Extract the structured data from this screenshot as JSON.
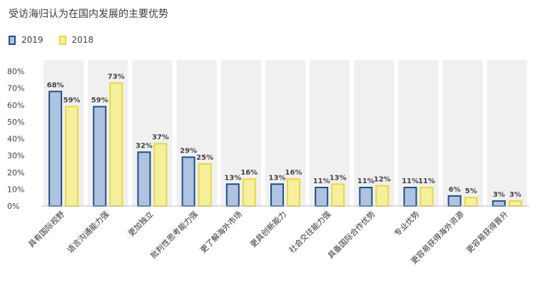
{
  "title": "受访海归认为在国内发展的主要优势",
  "legend": [
    {
      "name": "2019",
      "color": "#aec3e0",
      "border": "#1f4e8c"
    },
    {
      "name": "2018",
      "color": "#f6ef9c",
      "border": "#e8d93a"
    }
  ],
  "chart_data": {
    "type": "bar",
    "title": "受访海归认为在国内发展的主要优势",
    "xlabel": "",
    "ylabel": "",
    "ylim": [
      0,
      80
    ],
    "yticks": [
      "0%",
      "10%",
      "20%",
      "30%",
      "40%",
      "50%",
      "60%",
      "70%",
      "80%"
    ],
    "legend_position": "top-left",
    "categories": [
      "具有国际视野",
      "语言沟通能力强",
      "更加独立",
      "批判性思考能力强",
      "更了解海外市场",
      "更具创新能力",
      "社会交往能力强",
      "具备国际合作优势",
      "专业优势",
      "更容易获得海外资源",
      "更容易获得晋升"
    ],
    "series": [
      {
        "name": "2019",
        "values": [
          68,
          59,
          32,
          29,
          13,
          13,
          11,
          11,
          11,
          6,
          3
        ],
        "labels": [
          "68%",
          "59%",
          "32%",
          "29%",
          "13%",
          "13%",
          "11%",
          "11%",
          "11%",
          "6%",
          "3%"
        ],
        "color": "#aec3e0",
        "border": "#1f4e8c"
      },
      {
        "name": "2018",
        "values": [
          59,
          73,
          37,
          25,
          16,
          16,
          13,
          12,
          11,
          5,
          3
        ],
        "labels": [
          "59%",
          "73%",
          "37%",
          "25%",
          "16%",
          "16%",
          "13%",
          "12%",
          "11%",
          "5%",
          "3%"
        ],
        "color": "#f6ef9c",
        "border": "#e8d93a"
      }
    ]
  }
}
